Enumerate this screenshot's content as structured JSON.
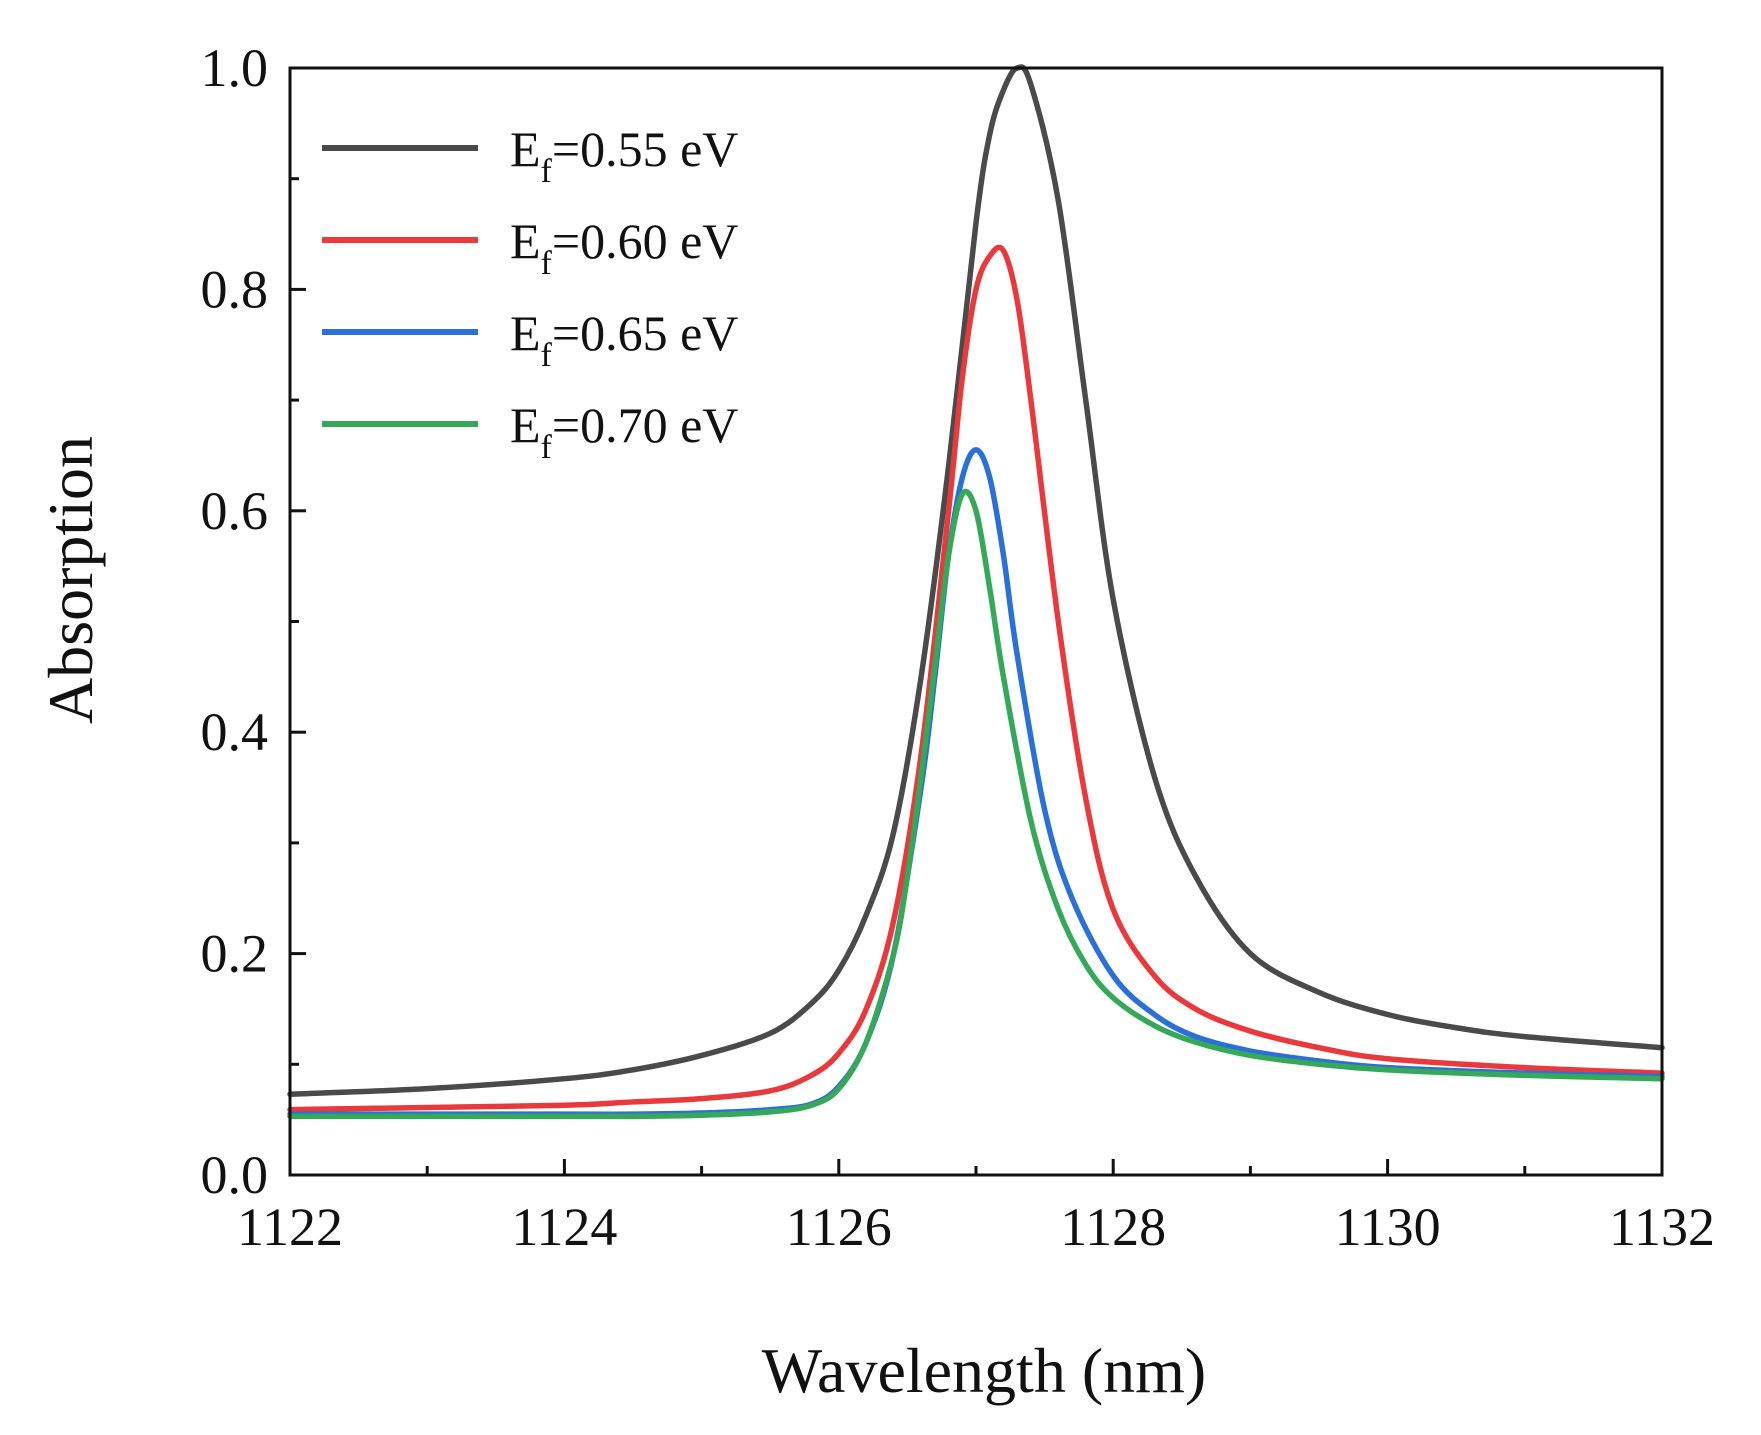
{
  "chart_data": {
    "type": "line",
    "title": "",
    "xlabel": "Wavelength (nm)",
    "ylabel": "Absorption",
    "xlim": [
      1122,
      1132
    ],
    "ylim": [
      0.0,
      1.0
    ],
    "xticks": [
      1122,
      1124,
      1126,
      1128,
      1130,
      1132
    ],
    "xtick_labels": [
      "1122",
      "1124",
      "1126",
      "1128",
      "1130",
      "1132"
    ],
    "yticks": [
      0.0,
      0.2,
      0.4,
      0.6,
      0.8,
      1.0
    ],
    "ytick_labels": [
      "0.0",
      "0.2",
      "0.4",
      "0.6",
      "0.8",
      "1.0"
    ],
    "grid": false,
    "legend_position": "top-left",
    "series": [
      {
        "name": "E_f=0.55 eV",
        "label_main": "E",
        "label_sub": "f",
        "label_rest": "=0.55 eV",
        "color": "#4a4a4a",
        "x": [
          1122,
          1123,
          1124,
          1124.5,
          1125,
          1125.5,
          1125.8,
          1126,
          1126.2,
          1126.4,
          1126.6,
          1126.8,
          1127,
          1127.1,
          1127.2,
          1127.3,
          1127.4,
          1127.6,
          1127.8,
          1128,
          1128.3,
          1128.6,
          1129,
          1129.5,
          1130,
          1130.5,
          1131,
          1132
        ],
        "y": [
          0.073,
          0.078,
          0.087,
          0.095,
          0.108,
          0.128,
          0.155,
          0.185,
          0.235,
          0.31,
          0.45,
          0.64,
          0.86,
          0.94,
          0.98,
          1.0,
          0.985,
          0.88,
          0.7,
          0.52,
          0.36,
          0.27,
          0.2,
          0.165,
          0.145,
          0.133,
          0.125,
          0.115
        ]
      },
      {
        "name": "E_f=0.60 eV",
        "label_main": "E",
        "label_sub": "f",
        "label_rest": "=0.60 eV",
        "color": "#e8393c",
        "x": [
          1122,
          1123,
          1124,
          1124.5,
          1125,
          1125.5,
          1125.8,
          1126,
          1126.2,
          1126.4,
          1126.6,
          1126.8,
          1126.9,
          1127,
          1127.1,
          1127.2,
          1127.3,
          1127.4,
          1127.6,
          1127.8,
          1128,
          1128.3,
          1128.6,
          1129,
          1129.5,
          1130,
          1131,
          1132
        ],
        "y": [
          0.059,
          0.061,
          0.063,
          0.066,
          0.069,
          0.076,
          0.09,
          0.11,
          0.15,
          0.23,
          0.38,
          0.6,
          0.72,
          0.8,
          0.83,
          0.835,
          0.79,
          0.7,
          0.5,
          0.34,
          0.24,
          0.18,
          0.15,
          0.13,
          0.115,
          0.105,
          0.097,
          0.092
        ]
      },
      {
        "name": "E_f=0.65 eV",
        "label_main": "E",
        "label_sub": "f",
        "label_rest": "=0.65 eV",
        "color": "#2b6fd8",
        "x": [
          1122,
          1123,
          1124,
          1124.5,
          1125,
          1125.5,
          1125.8,
          1126,
          1126.2,
          1126.4,
          1126.6,
          1126.7,
          1126.8,
          1126.9,
          1127,
          1127.1,
          1127.2,
          1127.3,
          1127.5,
          1127.7,
          1128,
          1128.3,
          1128.6,
          1129,
          1129.5,
          1130,
          1131,
          1132
        ],
        "y": [
          0.055,
          0.055,
          0.055,
          0.055,
          0.056,
          0.059,
          0.064,
          0.08,
          0.12,
          0.2,
          0.35,
          0.45,
          0.56,
          0.63,
          0.655,
          0.63,
          0.56,
          0.47,
          0.33,
          0.25,
          0.18,
          0.145,
          0.125,
          0.112,
          0.103,
          0.097,
          0.092,
          0.089
        ]
      },
      {
        "name": "E_f=0.70 eV",
        "label_main": "E",
        "label_sub": "f",
        "label_rest": "=0.70 eV",
        "color": "#36a85a",
        "x": [
          1122,
          1123,
          1124,
          1124.5,
          1125,
          1125.5,
          1125.8,
          1126,
          1126.2,
          1126.4,
          1126.5,
          1126.6,
          1126.7,
          1126.8,
          1126.9,
          1127,
          1127.1,
          1127.2,
          1127.4,
          1127.6,
          1127.8,
          1128,
          1128.3,
          1128.6,
          1129,
          1129.5,
          1130,
          1131,
          1132
        ],
        "y": [
          0.053,
          0.053,
          0.053,
          0.053,
          0.054,
          0.057,
          0.063,
          0.078,
          0.12,
          0.2,
          0.27,
          0.36,
          0.46,
          0.56,
          0.615,
          0.6,
          0.53,
          0.45,
          0.32,
          0.24,
          0.19,
          0.16,
          0.135,
          0.12,
          0.108,
          0.1,
          0.095,
          0.09,
          0.087
        ]
      }
    ]
  }
}
